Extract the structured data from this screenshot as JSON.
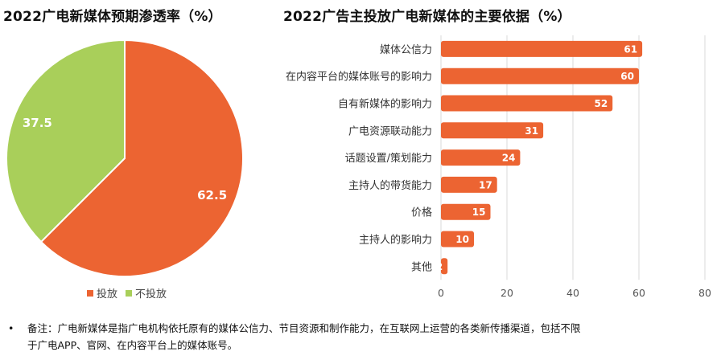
{
  "chart_data": [
    {
      "type": "pie",
      "title": "2022广电新媒体预期渗透率（%）",
      "slices": [
        {
          "label": "投放",
          "value": 62.5,
          "color": "#EC6432"
        },
        {
          "label": "不投放",
          "value": 37.5,
          "color": "#A9CF5A"
        }
      ],
      "legend_position": "bottom"
    },
    {
      "type": "bar",
      "orientation": "horizontal",
      "title": "2022广告主投放广电新媒体的主要依据（%）",
      "categories": [
        "媒体公信力",
        "在内容平台的媒体账号的影响力",
        "自有新媒体的影响力",
        "广电资源联动能力",
        "话题设置/策划能力",
        "主持人的带货能力",
        "价格",
        "主持人的影响力",
        "其他"
      ],
      "values": [
        61,
        60,
        52,
        31,
        24,
        17,
        15,
        10,
        2
      ],
      "color": "#EC6432",
      "xlim": [
        0,
        80
      ],
      "xticks": [
        "0",
        "20",
        "40",
        "60",
        "80"
      ],
      "grid": true
    }
  ],
  "note": {
    "bullet": "•",
    "line1": "备注：广电新媒体是指广电机构依托原有的媒体公信力、节目资源和制作能力，在互联网上运营的各类新传播渠道，包括不限",
    "line2": "于广电APP、官网、在内容平台上的媒体账号。"
  }
}
